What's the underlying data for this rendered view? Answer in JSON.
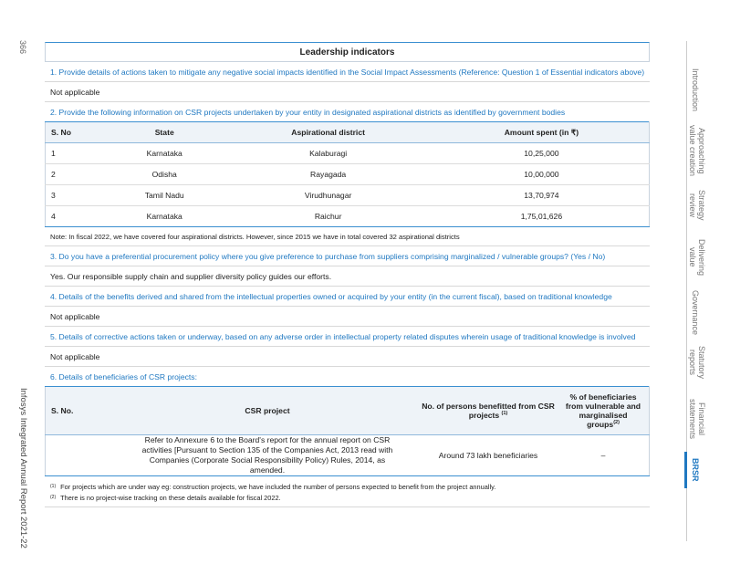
{
  "page_number": "366",
  "report_title": "Infosys Integrated Annual Report 2021-22",
  "nav": {
    "items": [
      {
        "label": "Introduction"
      },
      {
        "label": "Approaching value creation"
      },
      {
        "label": "Strategy review"
      },
      {
        "label": "Delivering value"
      },
      {
        "label": "Governance"
      },
      {
        "label": "Statutory reports"
      },
      {
        "label": "Financial statements"
      },
      {
        "label": "BRSR",
        "active": true
      }
    ],
    "accent_color": "#1f78c1"
  },
  "section_title": "Leadership indicators",
  "q1": {
    "question": "1. Provide details of actions taken to mitigate any negative social impacts identified in the Social Impact Assessments (Reference: Question 1 of Essential indicators above)",
    "answer": "Not applicable"
  },
  "q2": {
    "question": "2. Provide the following information on CSR projects undertaken by your entity in designated aspirational districts as identified by government bodies",
    "headers": [
      "S. No",
      "State",
      "Aspirational district",
      "Amount spent (in ₹)"
    ],
    "rows": [
      [
        "1",
        "Karnataka",
        "Kalaburagi",
        "10,25,000"
      ],
      [
        "2",
        "Odisha",
        "Rayagada",
        "10,00,000"
      ],
      [
        "3",
        "Tamil Nadu",
        "Virudhunagar",
        "13,70,974"
      ],
      [
        "4",
        "Karnataka",
        "Raichur",
        "1,75,01,626"
      ]
    ],
    "note": "Note: In fiscal 2022, we have covered four aspirational districts. However, since 2015 we have in total covered 32 aspirational districts"
  },
  "q3": {
    "question": "3. Do you have a preferential procurement policy where you give preference to purchase from suppliers comprising marginalized / vulnerable groups? (Yes / No)",
    "answer": "Yes. Our responsible supply chain and supplier diversity policy guides our efforts."
  },
  "q4": {
    "question": "4. Details of the benefits derived and shared from the intellectual properties owned or acquired by your entity (in the current fiscal), based on traditional knowledge",
    "answer": "Not applicable"
  },
  "q5": {
    "question": "5. Details of corrective actions taken or underway, based on any adverse order in intellectual property related disputes wherein usage of traditional knowledge is involved",
    "answer": "Not applicable"
  },
  "q6": {
    "question": "6. Details of beneficiaries of CSR projects:",
    "headers": {
      "sno": "S. No.",
      "project": "CSR project",
      "persons": "No. of persons benefitted from CSR projects",
      "persons_sup": "(1)",
      "pct": "% of beneficiaries from vulnerable and marginalised groups",
      "pct_sup": "(2)"
    },
    "row": {
      "sno": "",
      "project": "Refer to Annexure 6 to the Board's report for the annual report on CSR activities [Pursuant to Section 135 of the Companies Act, 2013 read with Companies (Corporate Social Responsibility Policy) Rules, 2014, as amended.",
      "persons": "Around 73 lakh beneficiaries",
      "pct": "–"
    },
    "footnotes": [
      {
        "mark": "(1)",
        "text": "For projects which are under way eg: construction projects, we have included the number of persons expected to benefit from the project annually."
      },
      {
        "mark": "(2)",
        "text": "There is no project-wise tracking on these details available for fiscal 2022."
      }
    ]
  }
}
